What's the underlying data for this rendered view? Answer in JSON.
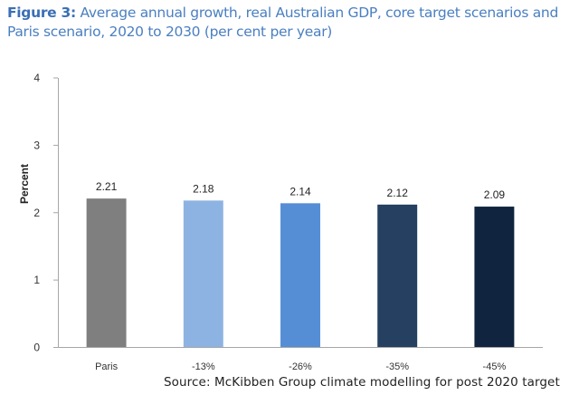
{
  "figure": {
    "label": "Figure 3:",
    "caption": "Average annual growth, real Australian GDP, core target scenarios and Paris scenario, 2020 to 2030 (per cent per year)",
    "source": "Source: McKibben Group climate modelling for post 2020 target"
  },
  "chart_data": {
    "type": "bar",
    "title": "Average annual growth, real Australian GDP, core target scenarios and Paris scenario, 2020 to 2030 (per cent per year)",
    "xlabel": "",
    "ylabel": "Percent",
    "ylim": [
      0,
      4
    ],
    "yticks": [
      0,
      1,
      2,
      3,
      4
    ],
    "grid": false,
    "legend": "none",
    "categories": [
      "Paris",
      "-13%",
      "-26%",
      "-35%",
      "-45%"
    ],
    "values": [
      2.21,
      2.18,
      2.14,
      2.12,
      2.09
    ],
    "data_labels": [
      "2.21",
      "2.18",
      "2.14",
      "2.12",
      "2.09"
    ],
    "colors": [
      "#7f7f7f",
      "#8db3e2",
      "#558ed5",
      "#254061",
      "#10243f"
    ]
  }
}
